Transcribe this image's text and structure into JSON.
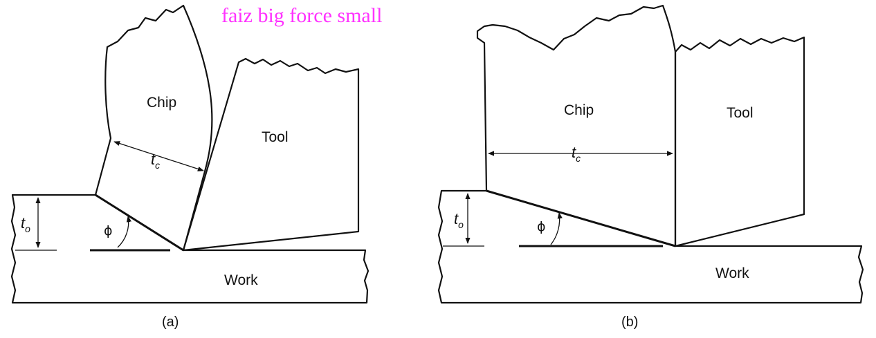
{
  "annotation": "faiz big force small",
  "panels": [
    {
      "caption": "(a)",
      "labels": {
        "chip": "Chip",
        "tool": "Tool",
        "work": "Work",
        "chip_thickness": "t",
        "chip_thickness_sub": "c",
        "uncut_thickness": "t",
        "uncut_thickness_sub": "o",
        "shear_angle": "ϕ"
      }
    },
    {
      "caption": "(b)",
      "labels": {
        "chip": "Chip",
        "tool": "Tool",
        "work": "Work",
        "chip_thickness": "t",
        "chip_thickness_sub": "c",
        "uncut_thickness": "t",
        "uncut_thickness_sub": "o",
        "shear_angle": "ϕ"
      }
    }
  ],
  "colors": {
    "material": "#dcb882",
    "tool": "#d2d3d5",
    "annotation": "#ff33ff",
    "line": "#111111"
  }
}
